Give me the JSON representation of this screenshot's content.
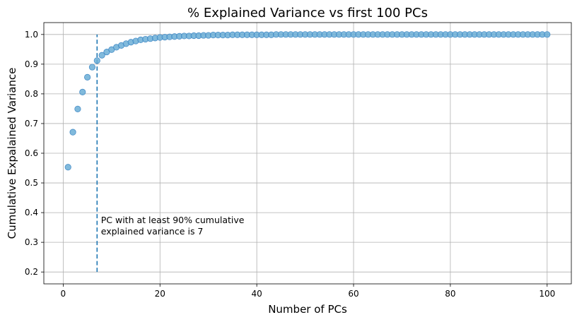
{
  "chart_data": {
    "type": "scatter",
    "title": "% Explained Variance vs first 100 PCs",
    "xlabel": "Number of PCs",
    "ylabel": "Cumulative Expalained Variance",
    "xlim": [
      -4,
      105
    ],
    "ylim": [
      0.16,
      1.04
    ],
    "grid": true,
    "x_ticks": [
      0,
      20,
      40,
      60,
      80,
      100
    ],
    "y_ticks": [
      0.2,
      0.3,
      0.4,
      0.5,
      0.6,
      0.7,
      0.8,
      0.9,
      1.0
    ],
    "x_tick_labels": [
      "0",
      "20",
      "40",
      "60",
      "80",
      "100"
    ],
    "y_tick_labels": [
      "0.2",
      "0.3",
      "0.4",
      "0.5",
      "0.6",
      "0.7",
      "0.8",
      "0.9",
      "1.0"
    ],
    "point_color": "#6baed6",
    "point_edge_color": "#3d86c4",
    "series": [
      {
        "x": [
          1,
          2,
          3,
          4,
          5,
          6,
          7,
          8,
          9,
          10,
          11,
          12,
          13,
          14,
          15,
          16,
          17,
          18,
          19,
          20,
          21,
          22,
          23,
          24,
          25,
          26,
          27,
          28,
          29,
          30,
          31,
          32,
          33,
          34,
          35,
          36,
          37,
          38,
          39,
          40,
          41,
          42,
          43,
          44,
          45,
          46,
          47,
          48,
          49,
          50,
          51,
          52,
          53,
          54,
          55,
          56,
          57,
          58,
          59,
          60,
          61,
          62,
          63,
          64,
          65,
          66,
          67,
          68,
          69,
          70,
          71,
          72,
          73,
          74,
          75,
          76,
          77,
          78,
          79,
          80,
          81,
          82,
          83,
          84,
          85,
          86,
          87,
          88,
          89,
          90,
          91,
          92,
          93,
          94,
          95,
          96,
          97,
          98,
          99,
          100
        ],
        "y": [
          0.553,
          0.671,
          0.749,
          0.806,
          0.856,
          0.89,
          0.912,
          0.93,
          0.941,
          0.949,
          0.957,
          0.963,
          0.969,
          0.974,
          0.978,
          0.982,
          0.984,
          0.986,
          0.988,
          0.99,
          0.991,
          0.992,
          0.993,
          0.994,
          0.995,
          0.995,
          0.996,
          0.996,
          0.997,
          0.997,
          0.998,
          0.998,
          0.998,
          0.998,
          0.999,
          0.999,
          0.999,
          0.999,
          0.999,
          0.999,
          0.999,
          0.999,
          0.999,
          1.0,
          1.0,
          1.0,
          1.0,
          1.0,
          1.0,
          1.0,
          1.0,
          1.0,
          1.0,
          1.0,
          1.0,
          1.0,
          1.0,
          1.0,
          1.0,
          1.0,
          1.0,
          1.0,
          1.0,
          1.0,
          1.0,
          1.0,
          1.0,
          1.0,
          1.0,
          1.0,
          1.0,
          1.0,
          1.0,
          1.0,
          1.0,
          1.0,
          1.0,
          1.0,
          1.0,
          1.0,
          1.0,
          1.0,
          1.0,
          1.0,
          1.0,
          1.0,
          1.0,
          1.0,
          1.0,
          1.0,
          1.0,
          1.0,
          1.0,
          1.0,
          1.0,
          1.0,
          1.0,
          1.0,
          1.0,
          1.0
        ]
      }
    ],
    "vline": {
      "x": 7,
      "ymin": 0.2,
      "ymax": 1.0,
      "color": "#1f77b4",
      "style": "dashed"
    },
    "annotation": {
      "lines": [
        "PC with at least 90% cumulative",
        "explained variance is 7"
      ],
      "x": 7.8,
      "y": 0.36
    }
  }
}
